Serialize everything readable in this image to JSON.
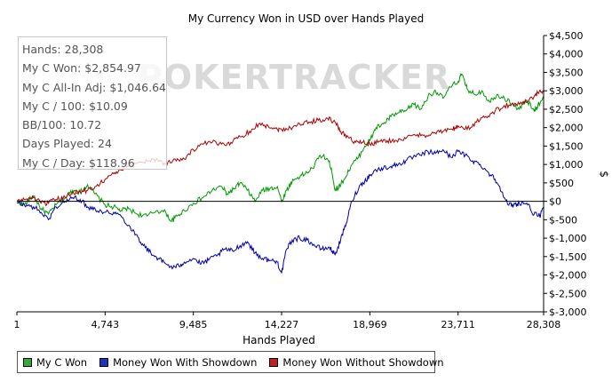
{
  "chart_data": {
    "type": "line",
    "title": "My Currency Won in USD over Hands Played",
    "xlabel": "Hands Played",
    "ylabel": "$",
    "xlim": [
      1,
      28308
    ],
    "ylim": [
      -3000,
      4500
    ],
    "x_ticks": [
      1,
      4743,
      9485,
      14227,
      18969,
      23711,
      28308
    ],
    "x_tick_labels": [
      "1",
      "4,743",
      "9,485",
      "14,227",
      "18,969",
      "23,711",
      "28,308"
    ],
    "y_ticks": [
      4500,
      4000,
      3500,
      3000,
      2500,
      2000,
      1500,
      1000,
      500,
      0,
      -500,
      -1000,
      -1500,
      -2000,
      -2500,
      -3000
    ],
    "y_tick_labels": [
      "$4,500",
      "$4,000",
      "$3,500",
      "$3,000",
      "$2,500",
      "$2,000",
      "$1,500",
      "$1,000",
      "$500",
      "$0",
      "$-500",
      "$-1,000",
      "$-1,500",
      "$-2,000",
      "$-2,500",
      "$-3,000"
    ],
    "grid": false,
    "legend_position": "bottom",
    "watermark": "POKERTRACKER",
    "series": [
      {
        "name": "My C Won",
        "color": "#009900",
        "points": [
          [
            1,
            0
          ],
          [
            400,
            -100
          ],
          [
            900,
            150
          ],
          [
            1300,
            -200
          ],
          [
            1700,
            -350
          ],
          [
            2100,
            -100
          ],
          [
            2600,
            100
          ],
          [
            3000,
            300
          ],
          [
            3400,
            250
          ],
          [
            3800,
            450
          ],
          [
            4200,
            200
          ],
          [
            4743,
            -100
          ],
          [
            5200,
            -150
          ],
          [
            5600,
            -250
          ],
          [
            6000,
            -200
          ],
          [
            6500,
            -350
          ],
          [
            7000,
            -400
          ],
          [
            7500,
            -250
          ],
          [
            8000,
            -300
          ],
          [
            8300,
            -550
          ],
          [
            8600,
            -400
          ],
          [
            9000,
            -250
          ],
          [
            9485,
            -50
          ],
          [
            10000,
            100
          ],
          [
            10500,
            300
          ],
          [
            11000,
            400
          ],
          [
            11300,
            200
          ],
          [
            11700,
            350
          ],
          [
            12000,
            500
          ],
          [
            12400,
            300
          ],
          [
            12800,
            0
          ],
          [
            13200,
            300
          ],
          [
            13600,
            350
          ],
          [
            14000,
            400
          ],
          [
            14227,
            0
          ],
          [
            14500,
            300
          ],
          [
            14800,
            550
          ],
          [
            15100,
            650
          ],
          [
            15500,
            750
          ],
          [
            15900,
            900
          ],
          [
            16300,
            1250
          ],
          [
            16700,
            1150
          ],
          [
            16900,
            900
          ],
          [
            17100,
            300
          ],
          [
            17300,
            400
          ],
          [
            17600,
            600
          ],
          [
            18000,
            1000
          ],
          [
            18300,
            1150
          ],
          [
            18700,
            1500
          ],
          [
            18969,
            1650
          ],
          [
            19300,
            2000
          ],
          [
            19700,
            2100
          ],
          [
            20100,
            2300
          ],
          [
            20500,
            2400
          ],
          [
            20900,
            2450
          ],
          [
            21300,
            2650
          ],
          [
            21700,
            2500
          ],
          [
            22100,
            2850
          ],
          [
            22500,
            3000
          ],
          [
            22900,
            2800
          ],
          [
            23300,
            3100
          ],
          [
            23711,
            3250
          ],
          [
            23900,
            3450
          ],
          [
            24200,
            3050
          ],
          [
            24600,
            2900
          ],
          [
            25000,
            3000
          ],
          [
            25400,
            2700
          ],
          [
            25800,
            2900
          ],
          [
            26200,
            2800
          ],
          [
            26600,
            2650
          ],
          [
            27000,
            2500
          ],
          [
            27400,
            2750
          ],
          [
            27800,
            2450
          ],
          [
            28000,
            2600
          ],
          [
            28308,
            2854.97
          ]
        ]
      },
      {
        "name": "Money Won With Showdown",
        "color": "#0000aa",
        "points": [
          [
            1,
            -50
          ],
          [
            400,
            -100
          ],
          [
            900,
            -150
          ],
          [
            1300,
            -300
          ],
          [
            1700,
            -500
          ],
          [
            2100,
            -150
          ],
          [
            2600,
            0
          ],
          [
            3000,
            100
          ],
          [
            3400,
            50
          ],
          [
            3800,
            -150
          ],
          [
            4200,
            -200
          ],
          [
            4743,
            -300
          ],
          [
            5200,
            -300
          ],
          [
            5600,
            -400
          ],
          [
            6000,
            -650
          ],
          [
            6400,
            -900
          ],
          [
            6800,
            -1200
          ],
          [
            7200,
            -1400
          ],
          [
            7600,
            -1550
          ],
          [
            8000,
            -1700
          ],
          [
            8400,
            -1800
          ],
          [
            8700,
            -1750
          ],
          [
            9000,
            -1650
          ],
          [
            9485,
            -1550
          ],
          [
            9900,
            -1700
          ],
          [
            10300,
            -1600
          ],
          [
            10800,
            -1450
          ],
          [
            11200,
            -1300
          ],
          [
            11600,
            -1350
          ],
          [
            12000,
            -1200
          ],
          [
            12400,
            -1100
          ],
          [
            12800,
            -1400
          ],
          [
            13200,
            -1550
          ],
          [
            13600,
            -1600
          ],
          [
            14000,
            -1650
          ],
          [
            14227,
            -1950
          ],
          [
            14500,
            -1300
          ],
          [
            14800,
            -1050
          ],
          [
            15200,
            -1000
          ],
          [
            15600,
            -1050
          ],
          [
            16000,
            -1200
          ],
          [
            16400,
            -1300
          ],
          [
            16800,
            -1250
          ],
          [
            17100,
            -1450
          ],
          [
            17400,
            -1050
          ],
          [
            17700,
            -600
          ],
          [
            18000,
            0
          ],
          [
            18400,
            400
          ],
          [
            18700,
            550
          ],
          [
            18969,
            700
          ],
          [
            19300,
            850
          ],
          [
            19700,
            900
          ],
          [
            20100,
            950
          ],
          [
            20500,
            1000
          ],
          [
            20900,
            1100
          ],
          [
            21300,
            1200
          ],
          [
            21700,
            1250
          ],
          [
            22100,
            1350
          ],
          [
            22500,
            1300
          ],
          [
            22900,
            1400
          ],
          [
            23300,
            1200
          ],
          [
            23711,
            1350
          ],
          [
            24100,
            1250
          ],
          [
            24500,
            1100
          ],
          [
            24900,
            1000
          ],
          [
            25300,
            800
          ],
          [
            25700,
            600
          ],
          [
            26100,
            250
          ],
          [
            26400,
            -100
          ],
          [
            26700,
            -100
          ],
          [
            27000,
            -50
          ],
          [
            27400,
            -50
          ],
          [
            27800,
            -350
          ],
          [
            28100,
            -400
          ],
          [
            28308,
            -200
          ]
        ]
      },
      {
        "name": "Money Won Without Showdown",
        "color": "#aa0000",
        "points": [
          [
            1,
            0
          ],
          [
            400,
            50
          ],
          [
            900,
            100
          ],
          [
            1300,
            -50
          ],
          [
            1700,
            -50
          ],
          [
            2100,
            50
          ],
          [
            2600,
            100
          ],
          [
            3000,
            250
          ],
          [
            3400,
            250
          ],
          [
            3800,
            300
          ],
          [
            4200,
            400
          ],
          [
            4743,
            600
          ],
          [
            5200,
            750
          ],
          [
            5600,
            850
          ],
          [
            6000,
            950
          ],
          [
            6500,
            1050
          ],
          [
            7000,
            1100
          ],
          [
            7500,
            1150
          ],
          [
            8000,
            1000
          ],
          [
            8500,
            1150
          ],
          [
            9000,
            1150
          ],
          [
            9485,
            1400
          ],
          [
            10000,
            1550
          ],
          [
            10500,
            1600
          ],
          [
            11000,
            1550
          ],
          [
            11500,
            1600
          ],
          [
            12000,
            1750
          ],
          [
            12500,
            1900
          ],
          [
            13000,
            2100
          ],
          [
            13500,
            2050
          ],
          [
            14000,
            1950
          ],
          [
            14227,
            1950
          ],
          [
            14700,
            2000
          ],
          [
            15200,
            2100
          ],
          [
            15700,
            2150
          ],
          [
            16200,
            2200
          ],
          [
            16700,
            2250
          ],
          [
            17100,
            2150
          ],
          [
            17400,
            1900
          ],
          [
            17800,
            1750
          ],
          [
            18200,
            1600
          ],
          [
            18600,
            1600
          ],
          [
            18969,
            1550
          ],
          [
            19400,
            1600
          ],
          [
            19900,
            1650
          ],
          [
            20400,
            1650
          ],
          [
            20900,
            1700
          ],
          [
            21400,
            1800
          ],
          [
            21900,
            1800
          ],
          [
            22400,
            1850
          ],
          [
            22900,
            1900
          ],
          [
            23400,
            1950
          ],
          [
            23711,
            2050
          ],
          [
            24200,
            1950
          ],
          [
            24700,
            2150
          ],
          [
            25200,
            2300
          ],
          [
            25700,
            2450
          ],
          [
            26200,
            2600
          ],
          [
            26700,
            2600
          ],
          [
            27200,
            2700
          ],
          [
            27700,
            2800
          ],
          [
            28000,
            2950
          ],
          [
            28308,
            3000
          ]
        ]
      }
    ]
  },
  "stats": [
    "Hands: 28,308",
    "My C Won: $2,854.97",
    "My C All-In Adj: $1,046.64",
    "My C / 100: $10.09",
    "BB/100: 10.72",
    "Days Played: 24",
    "My C / Day: $118.96"
  ],
  "legend": {
    "items": [
      {
        "label": "My C Won",
        "color": "#33aa33"
      },
      {
        "label": "Money Won With Showdown",
        "color": "#2233bb"
      },
      {
        "label": "Money Won Without Showdown",
        "color": "#bb2222"
      }
    ]
  }
}
